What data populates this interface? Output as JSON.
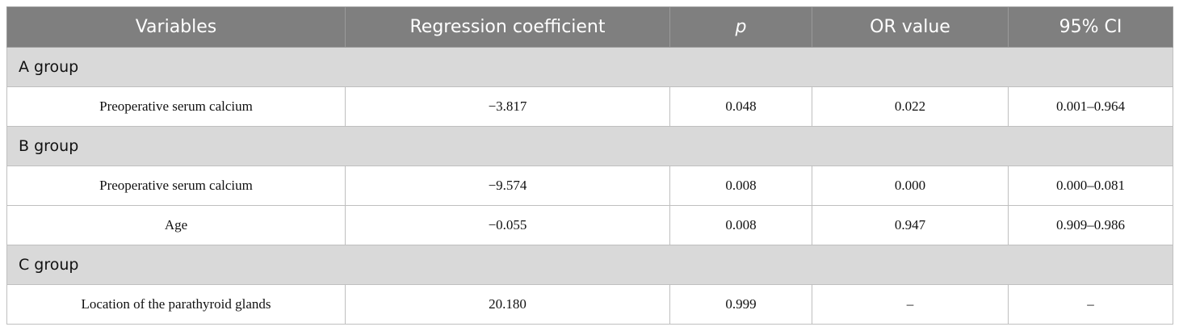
{
  "table": {
    "header": [
      "Variables",
      "Regression coefficient",
      "p",
      "OR value",
      "95% CI"
    ],
    "groups": [
      {
        "name": "A group",
        "rows": [
          [
            "Preoperative serum calcium",
            "−3.817",
            "0.048",
            "0.022",
            "0.001–0.964"
          ]
        ]
      },
      {
        "name": "B group",
        "rows": [
          [
            "Preoperative serum calcium",
            "−9.574",
            "0.008",
            "0.000",
            "0.000–0.081"
          ],
          [
            "Age",
            "−0.055",
            "0.008",
            "0.947",
            "0.909–0.986"
          ]
        ]
      },
      {
        "name": "C group",
        "rows": [
          [
            "Location of the parathyroid glands",
            "20.180",
            "0.999",
            "–",
            "–"
          ]
        ]
      }
    ]
  }
}
